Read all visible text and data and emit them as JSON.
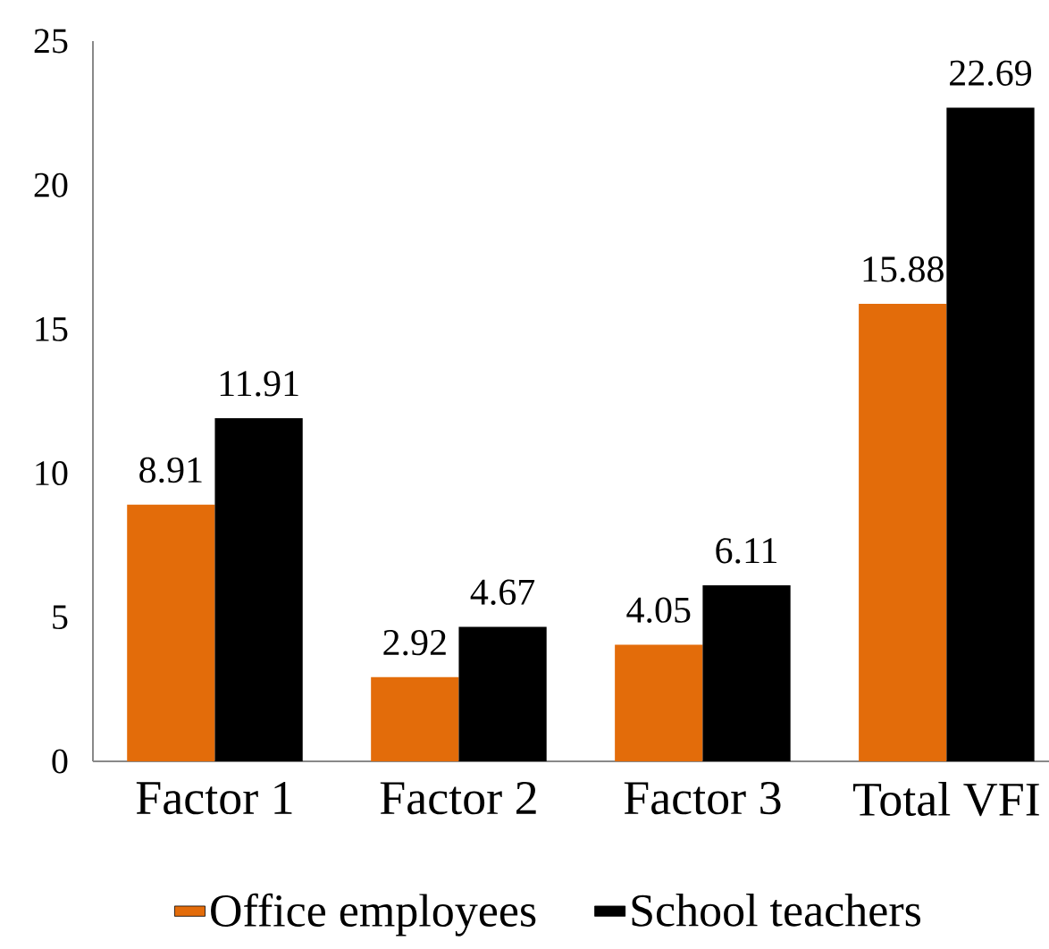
{
  "chart_data": {
    "type": "bar",
    "categories": [
      "Factor 1",
      "Factor 2",
      "Factor 3",
      "Total VFI"
    ],
    "series": [
      {
        "name": "Office employees",
        "color": "#e36c0a",
        "values": [
          8.91,
          2.92,
          4.05,
          15.88
        ]
      },
      {
        "name": "School teachers",
        "color": "#000000",
        "values": [
          11.91,
          4.67,
          6.11,
          22.69
        ]
      }
    ],
    "ylim": [
      0,
      25
    ],
    "yticks": [
      0,
      5,
      10,
      15,
      20,
      25
    ],
    "data_labels": true,
    "legend": "bottom"
  }
}
